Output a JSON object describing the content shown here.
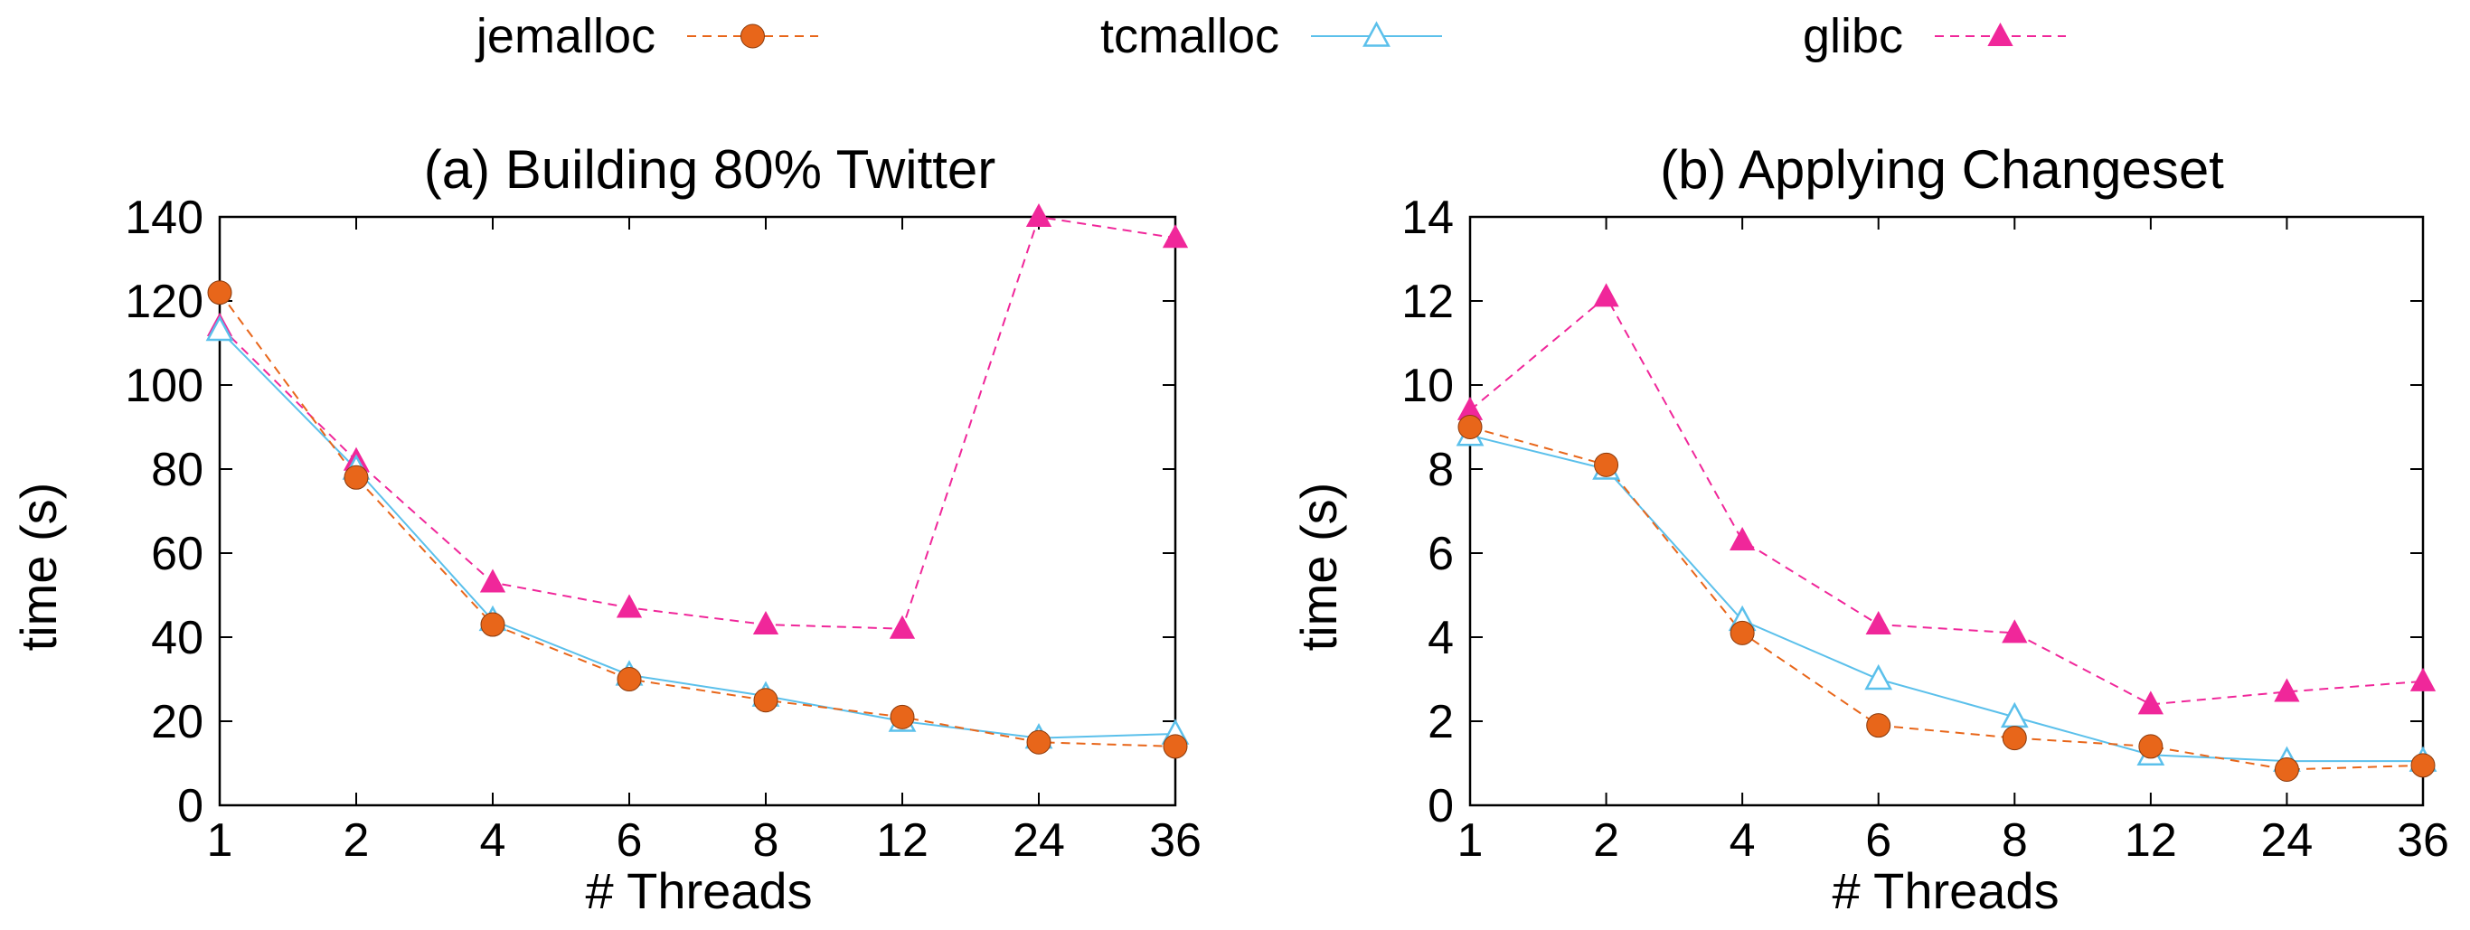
{
  "legend": [
    {
      "name": "jemalloc",
      "color": "#e8661a",
      "marker": "circle",
      "dash": true
    },
    {
      "name": "tcmalloc",
      "color": "#5bc0eb",
      "marker": "triangle-open",
      "dash": false
    },
    {
      "name": "glibc",
      "color": "#f0279a",
      "marker": "triangle",
      "dash": true
    }
  ],
  "chart_data": [
    {
      "type": "line",
      "title": "(a) Building 80% Twitter",
      "xlabel": "# Threads",
      "ylabel": "time (s)",
      "categories": [
        "1",
        "2",
        "4",
        "6",
        "8",
        "12",
        "24",
        "36"
      ],
      "ylim": [
        0,
        140
      ],
      "yticks": [
        "0",
        "20",
        "40",
        "60",
        "80",
        "100",
        "120",
        "140"
      ],
      "grid": false,
      "series": [
        {
          "name": "jemalloc",
          "values": [
            122,
            78,
            43,
            30,
            25,
            21,
            15,
            14
          ]
        },
        {
          "name": "tcmalloc",
          "values": [
            113,
            80,
            44,
            31,
            26,
            20,
            16,
            17
          ]
        },
        {
          "name": "glibc",
          "values": [
            114,
            82,
            53,
            47,
            43,
            42,
            140,
            135
          ]
        }
      ]
    },
    {
      "type": "line",
      "title": "(b) Applying Changeset",
      "xlabel": "# Threads",
      "ylabel": "time (s)",
      "categories": [
        "1",
        "2",
        "4",
        "6",
        "8",
        "12",
        "24",
        "36"
      ],
      "ylim": [
        0,
        14
      ],
      "yticks": [
        "0",
        "2",
        "4",
        "6",
        "8",
        "10",
        "12",
        "14"
      ],
      "grid": false,
      "series": [
        {
          "name": "jemalloc",
          "values": [
            9.0,
            8.1,
            4.1,
            1.9,
            1.6,
            1.4,
            0.85,
            0.95
          ]
        },
        {
          "name": "tcmalloc",
          "values": [
            8.8,
            8.0,
            4.4,
            3.0,
            2.1,
            1.2,
            1.05,
            1.05
          ]
        },
        {
          "name": "glibc",
          "values": [
            9.4,
            12.1,
            6.3,
            4.3,
            4.1,
            2.4,
            2.7,
            2.95
          ]
        }
      ]
    }
  ]
}
